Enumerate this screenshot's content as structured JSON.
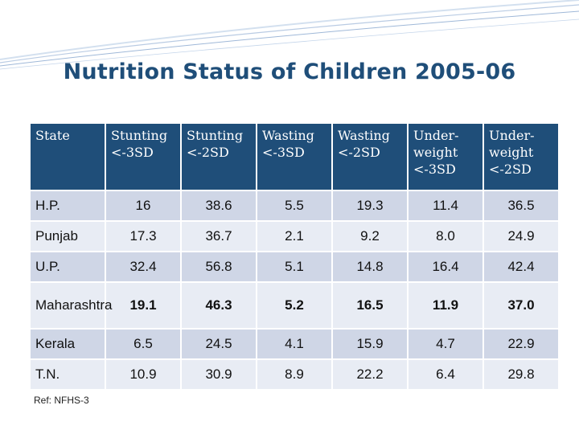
{
  "slide": {
    "title": "Nutrition Status of Children 2005-06",
    "reference": "Ref: NFHS-3",
    "colors": {
      "header_bg": "#1f4e79",
      "row_dark": "#cfd6e6",
      "row_light": "#e8ecf4",
      "title": "#1f4e79"
    }
  },
  "table": {
    "headers": [
      "State",
      "Stunting <-3SD",
      "Stunting <-2SD",
      "Wasting <-3SD",
      "Wasting <-2SD",
      "Under-weight <-3SD",
      "Under-weight <-2SD"
    ],
    "rows": [
      [
        "H.P.",
        "16",
        "38.6",
        "5.5",
        "19.3",
        "11.4",
        "36.5"
      ],
      [
        "Punjab",
        "17.3",
        "36.7",
        "2.1",
        "9.2",
        "8.0",
        "24.9"
      ],
      [
        "U.P.",
        "32.4",
        "56.8",
        "5.1",
        "14.8",
        "16.4",
        "42.4"
      ],
      [
        "Maharashtra",
        "19.1",
        "46.3",
        "5.2",
        "16.5",
        "11.9",
        "37.0"
      ],
      [
        "Kerala",
        "6.5",
        "24.5",
        "4.1",
        "15.9",
        "4.7",
        "22.9"
      ],
      [
        "T.N.",
        "10.9",
        "30.9",
        "8.9",
        "22.2",
        "6.4",
        "29.8"
      ]
    ]
  }
}
